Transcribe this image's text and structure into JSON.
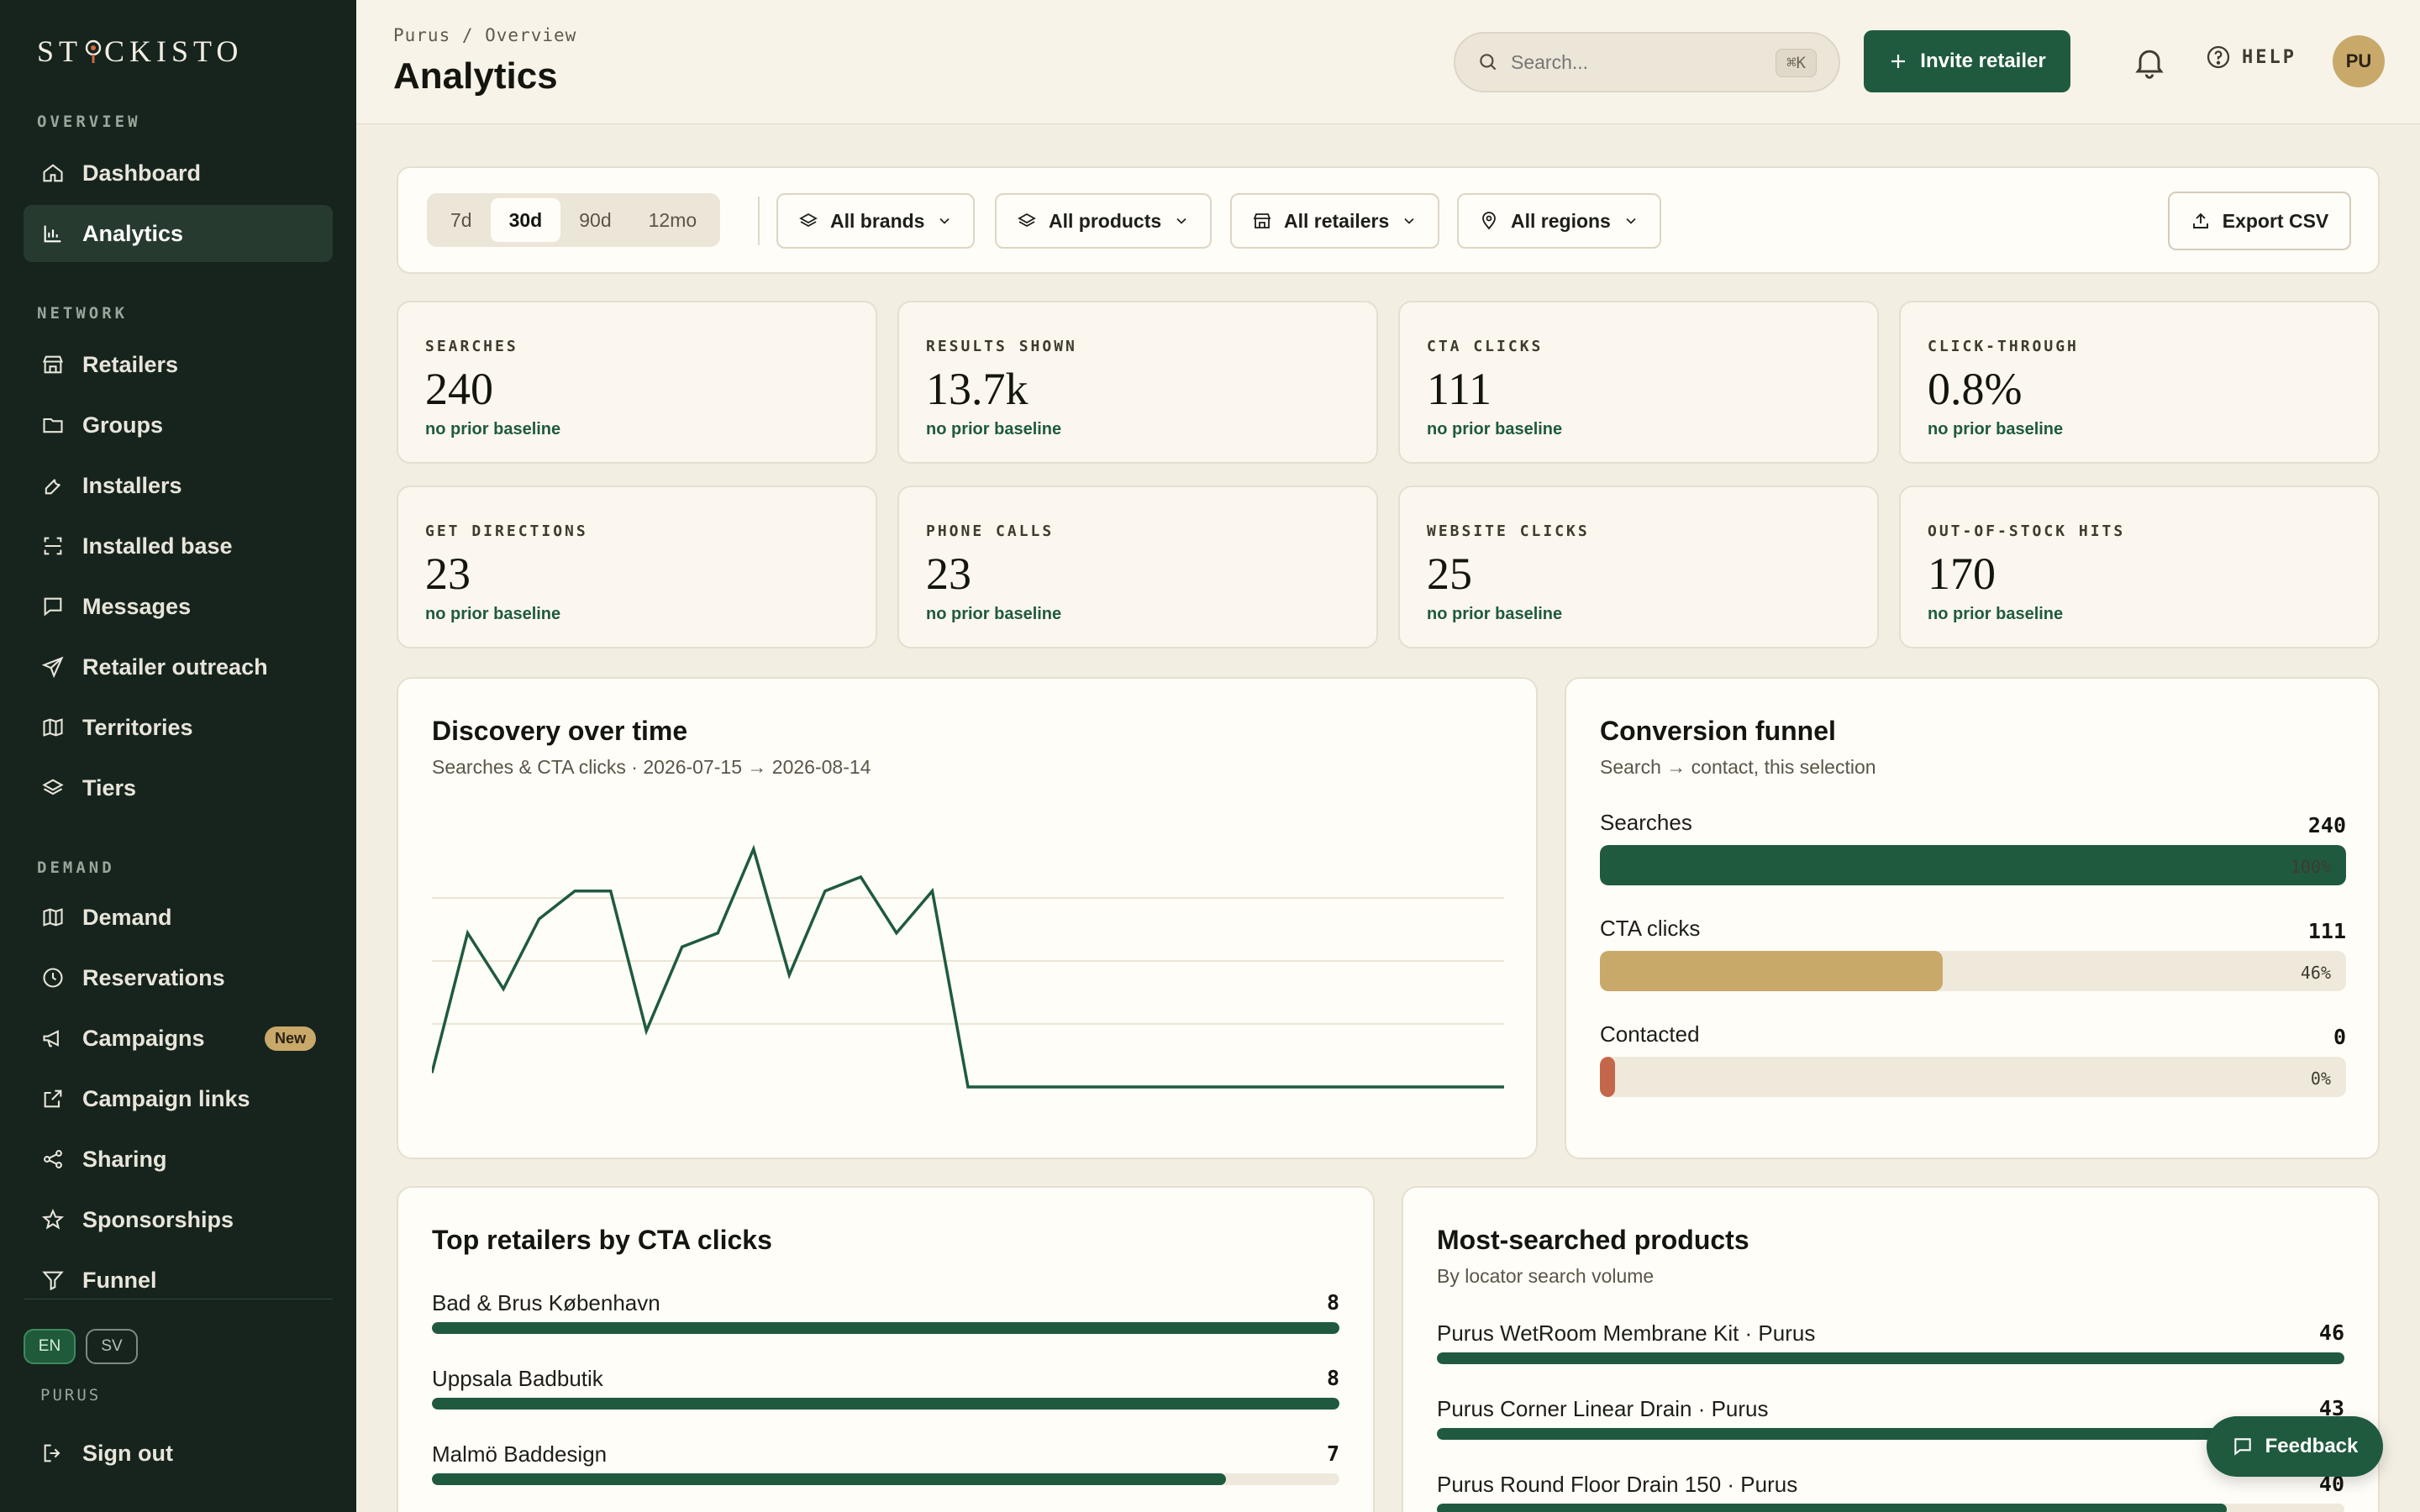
{
  "app": {
    "logo_text_a": "ST",
    "logo_text_b": "CKISTO"
  },
  "sidebar": {
    "sections": [
      {
        "label": "OVERVIEW",
        "items": [
          {
            "label": "Dashboard",
            "icon": "home-icon"
          },
          {
            "label": "Analytics",
            "icon": "bar-chart-icon",
            "active": true
          }
        ]
      },
      {
        "label": "NETWORK",
        "items": [
          {
            "label": "Retailers",
            "icon": "store-icon"
          },
          {
            "label": "Groups",
            "icon": "folder-icon"
          },
          {
            "label": "Installers",
            "icon": "wrench-icon"
          },
          {
            "label": "Installed base",
            "icon": "scan-icon"
          },
          {
            "label": "Messages",
            "icon": "message-icon"
          },
          {
            "label": "Retailer outreach",
            "icon": "send-icon"
          },
          {
            "label": "Territories",
            "icon": "map-icon"
          },
          {
            "label": "Tiers",
            "icon": "layers-icon"
          }
        ]
      },
      {
        "label": "DEMAND",
        "items": [
          {
            "label": "Demand",
            "icon": "map-icon"
          },
          {
            "label": "Reservations",
            "icon": "clock-icon"
          },
          {
            "label": "Campaigns",
            "icon": "megaphone-icon",
            "badge": "New"
          },
          {
            "label": "Campaign links",
            "icon": "external-link-icon"
          },
          {
            "label": "Sharing",
            "icon": "share-icon"
          },
          {
            "label": "Sponsorships",
            "icon": "star-icon"
          },
          {
            "label": "Funnel",
            "icon": "filter-icon"
          }
        ]
      }
    ],
    "lang_on": "EN",
    "lang_off": "SV",
    "org": "PURUS",
    "signout": "Sign out"
  },
  "header": {
    "breadcrumb": "Purus / Overview",
    "title": "Analytics",
    "search_placeholder": "Search...",
    "search_shortcut": "⌘K",
    "invite": "Invite retailer",
    "help": "HELP",
    "avatar": "PU"
  },
  "filters": {
    "ranges": [
      "7d",
      "30d",
      "90d",
      "12mo"
    ],
    "active_range": "30d",
    "brands": "All brands",
    "products": "All products",
    "retailers": "All retailers",
    "regions": "All regions",
    "export": "Export CSV"
  },
  "kpis": [
    {
      "label": "SEARCHES",
      "value": "240",
      "note": "no prior baseline"
    },
    {
      "label": "RESULTS SHOWN",
      "value": "13.7k",
      "note": "no prior baseline"
    },
    {
      "label": "CTA CLICKS",
      "value": "111",
      "note": "no prior baseline"
    },
    {
      "label": "CLICK-THROUGH",
      "value": "0.8%",
      "note": "no prior baseline"
    },
    {
      "label": "GET DIRECTIONS",
      "value": "23",
      "note": "no prior baseline"
    },
    {
      "label": "PHONE CALLS",
      "value": "23",
      "note": "no prior baseline"
    },
    {
      "label": "WEBSITE CLICKS",
      "value": "25",
      "note": "no prior baseline"
    },
    {
      "label": "OUT-OF-STOCK HITS",
      "value": "170",
      "note": "no prior baseline"
    }
  ],
  "discovery": {
    "title": "Discovery over time",
    "subtitle": "Searches & CTA clicks · 2026-07-15 → 2026-08-14"
  },
  "chart_data": {
    "type": "line",
    "x": [
      "2026-07-15",
      "2026-07-16",
      "2026-07-17",
      "2026-07-18",
      "2026-07-19",
      "2026-07-20",
      "2026-07-21",
      "2026-07-22",
      "2026-07-23",
      "2026-07-24",
      "2026-07-25",
      "2026-07-26",
      "2026-07-27",
      "2026-07-28",
      "2026-07-29",
      "2026-07-30",
      "2026-07-31",
      "2026-08-01",
      "2026-08-02",
      "2026-08-03",
      "2026-08-04",
      "2026-08-05",
      "2026-08-06",
      "2026-08-07",
      "2026-08-08",
      "2026-08-09",
      "2026-08-10",
      "2026-08-11",
      "2026-08-12",
      "2026-08-13",
      "2026-08-14"
    ],
    "series": [
      {
        "values": [
          1,
          11,
          7,
          12,
          14,
          14,
          4,
          10,
          11,
          17,
          8,
          14,
          15,
          11,
          14,
          0,
          0,
          0,
          0,
          0,
          0,
          0,
          0,
          0,
          0,
          0,
          0,
          0,
          0,
          0,
          0
        ]
      }
    ],
    "ylim": [
      0,
      18
    ],
    "grid": true,
    "color": "#1f5a3f"
  },
  "funnel": {
    "title": "Conversion funnel",
    "subtitle": "Search → contact, this selection",
    "rows": [
      {
        "name": "Searches",
        "value": "240",
        "pct": "100%",
        "fraction": 1.0,
        "color": "#1f5a3f"
      },
      {
        "name": "CTA clicks",
        "value": "111",
        "pct": "46%",
        "fraction": 0.46,
        "color": "#c8a96a"
      },
      {
        "name": "Contacted",
        "value": "0",
        "pct": "0%",
        "fraction": 0.0,
        "color": "#c4664a"
      }
    ]
  },
  "top_retailers": {
    "title": "Top retailers by CTA clicks",
    "rows": [
      {
        "name": "Bad & Brus København",
        "value": "8",
        "fraction": 1.0
      },
      {
        "name": "Uppsala Badbutik",
        "value": "8",
        "fraction": 1.0
      },
      {
        "name": "Malmö Baddesign",
        "value": "7",
        "fraction": 0.875
      }
    ]
  },
  "products": {
    "title": "Most-searched products",
    "subtitle": "By locator search volume",
    "rows": [
      {
        "name": "Purus WetRoom Membrane Kit · Purus",
        "value": "46",
        "fraction": 1.0
      },
      {
        "name": "Purus Corner Linear Drain · Purus",
        "value": "43",
        "fraction": 0.935
      },
      {
        "name": "Purus Round Floor Drain 150 · Purus",
        "value": "40",
        "fraction": 0.87
      }
    ]
  },
  "feedback": "Feedback",
  "colors": {
    "accent": "#1f5a3f",
    "sidebar": "#16241d",
    "gold": "#c8a96a",
    "terracotta": "#c4664a"
  }
}
